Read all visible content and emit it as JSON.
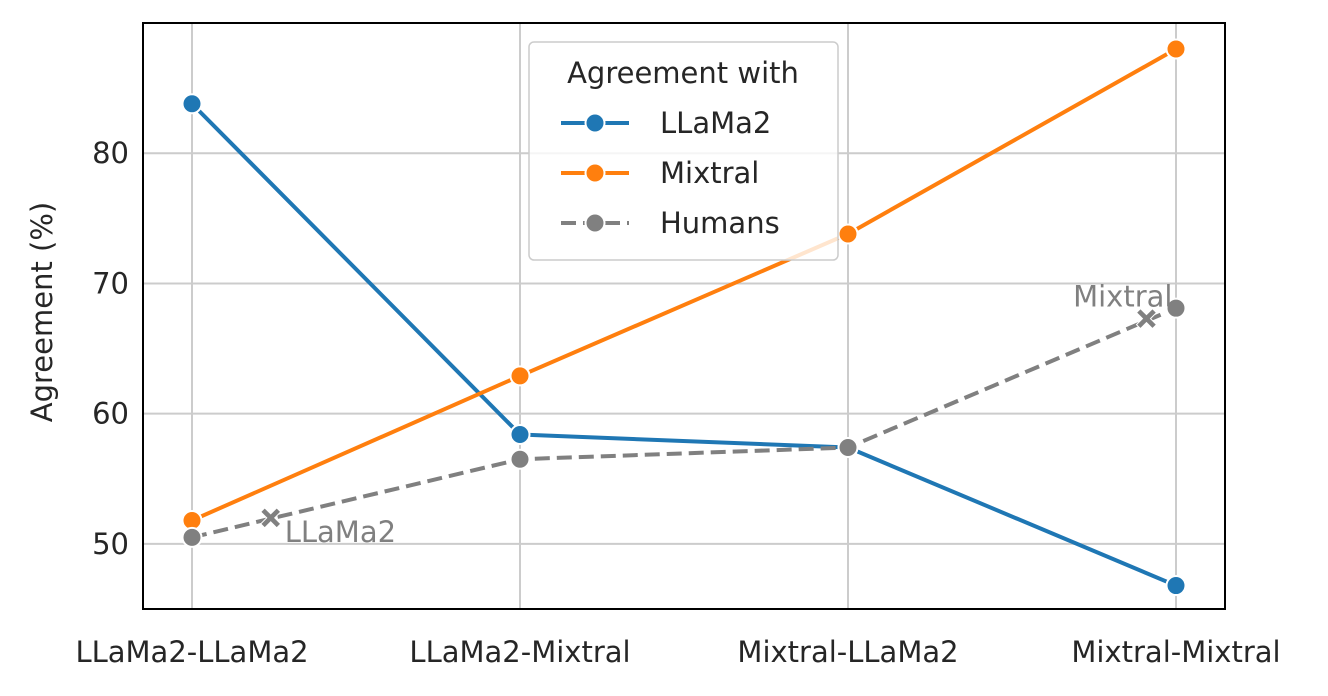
{
  "chart_data": {
    "type": "line",
    "title": "",
    "xlabel": "",
    "ylabel": "Agreement (%)",
    "categories": [
      "LLaMa2-LLaMa2",
      "LLaMa2-Mixtral",
      "Mixtral-LLaMa2",
      "Mixtral-Mixtral"
    ],
    "ylim": [
      45,
      90
    ],
    "yticks": [
      50,
      60,
      70,
      80
    ],
    "grid": true,
    "legend": {
      "title": "Agreement with",
      "position": "top-center"
    },
    "series": [
      {
        "name": "LLaMa2",
        "values": [
          83.8,
          58.4,
          57.4,
          46.8
        ],
        "color": "#1f77b4",
        "dash": "solid"
      },
      {
        "name": "Mixtral",
        "values": [
          51.8,
          62.9,
          73.8,
          88.0
        ],
        "color": "#ff7f0e",
        "dash": "solid"
      },
      {
        "name": "Humans",
        "values": [
          50.5,
          56.5,
          57.4,
          68.1
        ],
        "color": "#808080",
        "dash": "dashed"
      }
    ],
    "annotations": [
      {
        "label": "LLaMa2",
        "x_index": 0.24,
        "y": 52.0,
        "marker": "x-filled",
        "text_anchor": "start"
      },
      {
        "label": "Mixtral",
        "x_index": 2.91,
        "y": 67.3,
        "marker": "x-filled",
        "text_anchor": "end"
      }
    ]
  }
}
